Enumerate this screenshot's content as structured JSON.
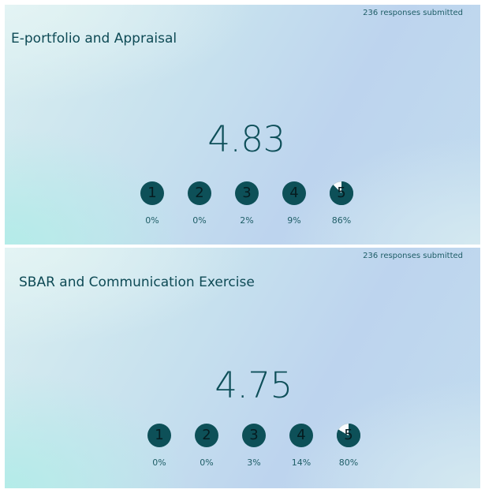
{
  "panels": [
    {
      "responses": "236 responses submitted",
      "title": "E-portfolio and Appraisal",
      "score": "4.83",
      "ratings": [
        {
          "label": "1",
          "percent": "0%"
        },
        {
          "label": "2",
          "percent": "0%"
        },
        {
          "label": "3",
          "percent": "2%"
        },
        {
          "label": "4",
          "percent": "9%"
        },
        {
          "label": "5",
          "percent": "86%"
        }
      ]
    },
    {
      "responses": "236 responses submitted",
      "title": "SBAR and Communication Exercise",
      "score": "4.75",
      "ratings": [
        {
          "label": "1",
          "percent": "0%"
        },
        {
          "label": "2",
          "percent": "0%"
        },
        {
          "label": "3",
          "percent": "3%"
        },
        {
          "label": "4",
          "percent": "14%"
        },
        {
          "label": "5",
          "percent": "80%"
        }
      ]
    }
  ],
  "colors": {
    "accent": "#0d5058",
    "title": "#0e4a55",
    "text": "#1e5d66"
  }
}
